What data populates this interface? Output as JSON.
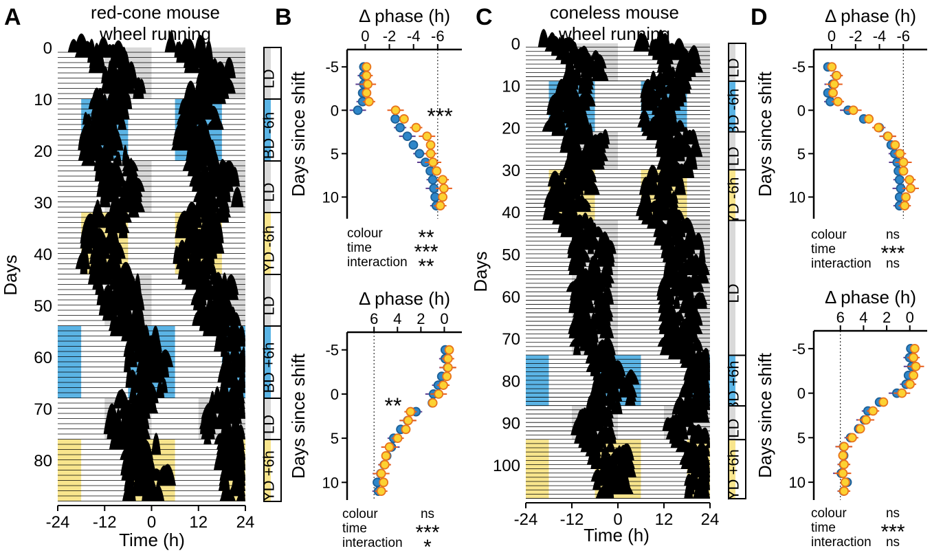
{
  "colors": {
    "blue": "#5bb4e5",
    "yellow": "#f8e58d",
    "gray": "#d9d9d9",
    "point_blue": "#2e86c9",
    "point_yellow": "#fcd232",
    "point_edge_orange": "#e8741c",
    "err_purple": "#5a3c8f",
    "err_orange": "#e85d1c"
  },
  "panels": [
    {
      "letter": "A",
      "title1": "red-cone mouse",
      "title2": "wheel running",
      "ylabel": "Days",
      "xlabel": "Time (h)",
      "xticks": [
        "-24",
        "-12",
        "0",
        "12",
        "24"
      ],
      "yticks": [
        "0",
        "10",
        "20",
        "30",
        "40",
        "50",
        "60",
        "70",
        "80"
      ],
      "bar_labels": [
        "LD",
        "BD -6h",
        "LD",
        "YD -6h",
        "LD",
        "BD +6h",
        "LD",
        "YD +6h"
      ]
    },
    {
      "letter": "B"
    },
    {
      "letter": "C",
      "title1": "coneless mouse",
      "title2": "wheel running",
      "ylabel": "Days",
      "xlabel": "Time (h)",
      "xticks": [
        "-24",
        "-12",
        "0",
        "12",
        "24"
      ],
      "yticks": [
        "0",
        "10",
        "20",
        "30",
        "40",
        "50",
        "60",
        "70",
        "80",
        "90",
        "100"
      ],
      "bar_labels": [
        "LD",
        "BD -6h",
        "LD",
        "YD -6h",
        "LD",
        "BD +6h",
        "LD",
        "YD +6h"
      ]
    },
    {
      "letter": "D"
    }
  ],
  "chart_data": [
    {
      "type": "actogram",
      "panel": "A",
      "title": "red-cone mouse wheel running",
      "xlabel": "Time (h)",
      "ylabel": "Days",
      "xlim": [
        -24,
        24
      ],
      "ylim": [
        0,
        88
      ],
      "phases": [
        {
          "label": "LD",
          "days": [
            0,
            10
          ],
          "color": "gray"
        },
        {
          "label": "BD -6h",
          "days": [
            10,
            22
          ],
          "color": "blue"
        },
        {
          "label": "LD",
          "days": [
            22,
            32
          ],
          "color": "gray"
        },
        {
          "label": "YD -6h",
          "days": [
            32,
            44
          ],
          "color": "yellow"
        },
        {
          "label": "LD",
          "days": [
            44,
            54
          ],
          "color": "gray"
        },
        {
          "label": "BD +6h",
          "days": [
            54,
            68
          ],
          "color": "blue"
        },
        {
          "label": "LD",
          "days": [
            68,
            76
          ],
          "color": "gray"
        },
        {
          "label": "YD +6h",
          "days": [
            76,
            88
          ],
          "color": "yellow"
        }
      ]
    },
    {
      "type": "scatter",
      "panel": "B-top",
      "xlabel": "Δ phase (h)",
      "ylabel": "Days since shift",
      "xticks": [
        "0",
        "-2",
        "-4",
        "-6"
      ],
      "yticks": [
        "-5",
        "0",
        "5",
        "10"
      ],
      "xlim": [
        1.5,
        -8
      ],
      "ylim": [
        -7,
        12.5
      ],
      "dotted_x": -6,
      "annotation": "***",
      "series": [
        {
          "color": "blue",
          "x": [
            0,
            0,
            0,
            0.1,
            0.1,
            0.5,
            -2.6,
            -3,
            -3.6,
            -4.1,
            -4.6,
            -5.1,
            -5.5,
            -5.7,
            -5.8,
            -5.9,
            -6.0
          ],
          "y": [
            -5,
            -4,
            -3,
            -2,
            -1,
            0,
            1,
            2,
            3,
            4,
            5,
            6,
            7,
            8,
            9,
            10,
            11
          ]
        },
        {
          "color": "yellow",
          "x": [
            0,
            0,
            -0.1,
            0,
            -0.2,
            -2.4,
            -3.1,
            -4.1,
            -5,
            -5.3,
            -5.3,
            -5.5,
            -5.8,
            -6.3,
            -6.4,
            -6.3,
            -6.1
          ],
          "y": [
            -5,
            -4,
            -3,
            -2,
            -1,
            0,
            1,
            2,
            3,
            4,
            5,
            6,
            7,
            8,
            9,
            10,
            11
          ]
        }
      ],
      "stats": [
        {
          "label": "colour",
          "value": "**"
        },
        {
          "label": "time",
          "value": "***"
        },
        {
          "label": "interaction",
          "value": "**"
        }
      ]
    },
    {
      "type": "scatter",
      "panel": "B-bottom",
      "xlabel": "Δ phase (h)",
      "ylabel": "Days since shift",
      "xticks": [
        "6",
        "4",
        "2",
        "0"
      ],
      "yticks": [
        "-5",
        "0",
        "5",
        "10"
      ],
      "xlim": [
        8.3,
        -1.5
      ],
      "ylim": [
        -7,
        12
      ],
      "dotted_x": 6,
      "annotation": "**",
      "series": [
        {
          "color": "blue",
          "x": [
            -0.2,
            -0.2,
            -0.4,
            0.1,
            0.4,
            0.8,
            0.9,
            2.3,
            3,
            3.6,
            4.2,
            4.4,
            4.8,
            5,
            5.3,
            5.6,
            5.5
          ],
          "y": [
            -5,
            -4,
            -3,
            -2,
            -1,
            0,
            1,
            2,
            3,
            4,
            5,
            6,
            7,
            8,
            9,
            10,
            11
          ]
        },
        {
          "color": "yellow",
          "x": [
            -0.3,
            -0.2,
            -0.2,
            -0.1,
            0.2,
            0.6,
            1.1,
            3,
            3.2,
            3.4,
            4.1,
            4.8,
            5.1,
            5.2,
            5.5,
            5.3,
            5.5
          ],
          "y": [
            -5,
            -4,
            -3,
            -2,
            -1,
            0,
            1,
            2,
            3,
            4,
            5,
            6,
            7,
            8,
            9,
            10,
            11
          ]
        }
      ],
      "stats": [
        {
          "label": "colour",
          "value": "ns"
        },
        {
          "label": "time",
          "value": "***"
        },
        {
          "label": "interaction",
          "value": "*"
        }
      ]
    },
    {
      "type": "actogram",
      "panel": "C",
      "title": "coneless mouse wheel running",
      "xlabel": "Time (h)",
      "ylabel": "Days",
      "xlim": [
        -24,
        24
      ],
      "ylim": [
        0,
        108
      ],
      "phases": [
        {
          "label": "LD",
          "days": [
            0,
            9
          ],
          "color": "gray"
        },
        {
          "label": "BD -6h",
          "days": [
            9,
            21
          ],
          "color": "blue"
        },
        {
          "label": "LD",
          "days": [
            21,
            30
          ],
          "color": "gray"
        },
        {
          "label": "YD -6h",
          "days": [
            30,
            42
          ],
          "color": "yellow"
        },
        {
          "label": "LD",
          "days": [
            42,
            74
          ],
          "color": "gray"
        },
        {
          "label": "BD +6h",
          "days": [
            74,
            86
          ],
          "color": "blue"
        },
        {
          "label": "LD",
          "days": [
            86,
            94
          ],
          "color": "gray"
        },
        {
          "label": "YD +6h",
          "days": [
            94,
            108
          ],
          "color": "yellow"
        }
      ]
    },
    {
      "type": "scatter",
      "panel": "D-top",
      "xlabel": "Δ phase (h)",
      "ylabel": "Days since shift",
      "xticks": [
        "0",
        "-2",
        "-4",
        "-6"
      ],
      "yticks": [
        "-5",
        "0",
        "5",
        "10"
      ],
      "xlim": [
        1.5,
        -8
      ],
      "ylim": [
        -7,
        12.5
      ],
      "dotted_x": -6,
      "annotation": "",
      "series": [
        {
          "color": "blue",
          "x": [
            0.2,
            -0.5,
            -0.2,
            0.2,
            0,
            -1.5,
            -2.8,
            -4.1,
            -4.8,
            -5.1,
            -5.4,
            -5.6,
            -5.7,
            -5.8,
            -5.9,
            -5.8,
            -5.8
          ],
          "y": [
            -5,
            -4,
            -3,
            -2,
            -1,
            0,
            1,
            2,
            3,
            4,
            5,
            6,
            7,
            8,
            9,
            10,
            11
          ]
        },
        {
          "color": "yellow",
          "x": [
            0.1,
            -0.3,
            -0.1,
            0,
            -0.4,
            -1.7,
            -3,
            -3.8,
            -4.6,
            -5.2,
            -5.6,
            -5.9,
            -5.9,
            -6.4,
            -6.5,
            -6.1,
            -6
          ],
          "y": [
            -5,
            -4,
            -3,
            -2,
            -1,
            0,
            1,
            2,
            3,
            4,
            5,
            6,
            7,
            8,
            9,
            10,
            11
          ]
        }
      ],
      "stats": [
        {
          "label": "colour",
          "value": "ns"
        },
        {
          "label": "time",
          "value": "***"
        },
        {
          "label": "interaction",
          "value": "ns"
        }
      ]
    },
    {
      "type": "scatter",
      "panel": "D-bottom",
      "xlabel": "Δ phase (h)",
      "ylabel": "Days since shift",
      "xticks": [
        "6",
        "4",
        "2",
        "0"
      ],
      "yticks": [
        "-5",
        "0",
        "5",
        "10"
      ],
      "xlim": [
        8.3,
        -1.5
      ],
      "ylim": [
        -7,
        12
      ],
      "dotted_x": 6,
      "annotation": "",
      "series": [
        {
          "color": "blue",
          "x": [
            -0.2,
            -0.1,
            -0.3,
            0,
            0.2,
            1,
            2.5,
            3.5,
            3.8,
            4.3,
            5,
            5.6,
            5.6,
            5.6,
            5.8,
            5.3,
            5.6
          ],
          "y": [
            -5,
            -4,
            -3,
            -2,
            -1,
            0,
            1,
            2,
            3,
            4,
            5,
            6,
            7,
            8,
            9,
            10,
            11
          ]
        },
        {
          "color": "yellow",
          "x": [
            -0.3,
            -0.2,
            -0.4,
            -0.2,
            0.1,
            0.8,
            2.4,
            3.3,
            3.9,
            4.4,
            5.1,
            5.8,
            5.9,
            5.8,
            5.9,
            5.7,
            5.8
          ],
          "y": [
            -5,
            -4,
            -3,
            -2,
            -1,
            0,
            1,
            2,
            3,
            4,
            5,
            6,
            7,
            8,
            9,
            10,
            11
          ]
        }
      ],
      "stats": [
        {
          "label": "colour",
          "value": "ns"
        },
        {
          "label": "time",
          "value": "***"
        },
        {
          "label": "interaction",
          "value": "ns"
        }
      ]
    }
  ]
}
